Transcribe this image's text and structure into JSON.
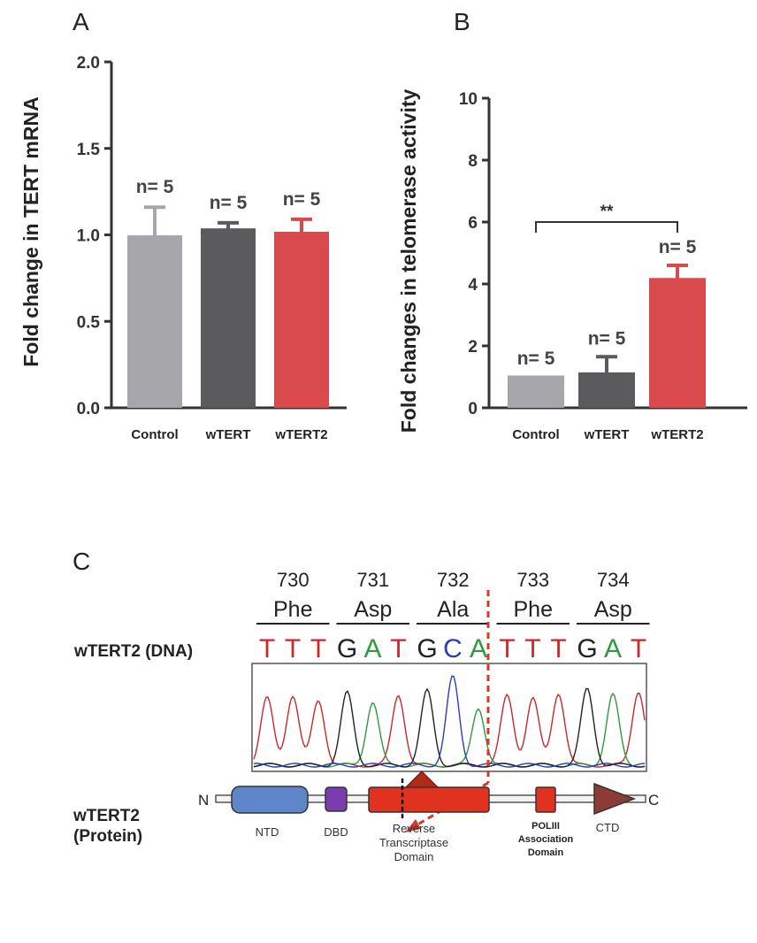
{
  "chart_data": [
    {
      "type": "bar",
      "panel": "A",
      "ylabel": "Fold change in TERT mRNA",
      "ylim": [
        0,
        2.0
      ],
      "yticks": [
        "0.0",
        "0.5",
        "1.0",
        "1.5",
        "2.0"
      ],
      "categories": [
        "Control",
        "wTERT",
        "wTERT2"
      ],
      "values": [
        0.99,
        1.03,
        1.01
      ],
      "errors": [
        0.17,
        0.04,
        0.08
      ],
      "colors": [
        "#a6a6ab",
        "#5b5b5d",
        "#d84a4c"
      ],
      "annotations": [
        "n= 5",
        "n= 5",
        "n= 5"
      ]
    },
    {
      "type": "bar",
      "panel": "B",
      "ylabel": "Fold changes in telomerase activity",
      "ylim": [
        0,
        10
      ],
      "yticks": [
        "0",
        "2",
        "4",
        "6",
        "8",
        "10"
      ],
      "categories": [
        "Control",
        "wTERT",
        "wTERT2"
      ],
      "values": [
        1.0,
        1.1,
        4.15
      ],
      "errors": [
        0.0,
        0.55,
        0.45
      ],
      "colors": [
        "#a6a6ab",
        "#5b5b5d",
        "#d84a4c"
      ],
      "annotations": [
        "n= 5",
        "n= 5",
        "n= 5"
      ],
      "significance": {
        "from": "Control",
        "to": "wTERT2",
        "label": "**"
      }
    }
  ],
  "panel_c": {
    "label": "C",
    "dna_label": "wTERT2 (DNA)",
    "protein_label_line1": "wTERT2",
    "protein_label_line2": "(Protein)",
    "codons": [
      {
        "number": "730",
        "amino_acid": "Phe",
        "bases": [
          "T",
          "T",
          "T"
        ],
        "highlight": false
      },
      {
        "number": "731",
        "amino_acid": "Asp",
        "bases": [
          "G",
          "A",
          "T"
        ],
        "highlight": false
      },
      {
        "number": "732",
        "amino_acid": "Ala",
        "bases": [
          "G",
          "C",
          "A"
        ],
        "highlight": true
      },
      {
        "number": "733",
        "amino_acid": "Phe",
        "bases": [
          "T",
          "T",
          "T"
        ],
        "highlight": false
      },
      {
        "number": "734",
        "amino_acid": "Asp",
        "bases": [
          "G",
          "A",
          "T"
        ],
        "highlight": false
      }
    ],
    "base_colors": {
      "T": "#c8282a",
      "A": "#2e9a3c",
      "G": "#222222",
      "C": "#2a3fb5"
    },
    "highlight_color": "#c8282a",
    "n_terminus": "N",
    "c_terminus": "C",
    "domains": {
      "ntd": "NTD",
      "dbd": "DBD",
      "rt_line1": "Reverse",
      "rt_line2": "Transcriptase",
      "rt_line3": "Domain",
      "pol_line1": "POLIII",
      "pol_line2": "Association",
      "pol_line3": "Domain",
      "ctd": "CTD"
    },
    "domain_colors": {
      "ntd": "#5f86c8",
      "dbd": "#7a3db0",
      "rt": "#e0321f",
      "pol": "#e0321f",
      "ctd": "#8c3b35"
    }
  }
}
